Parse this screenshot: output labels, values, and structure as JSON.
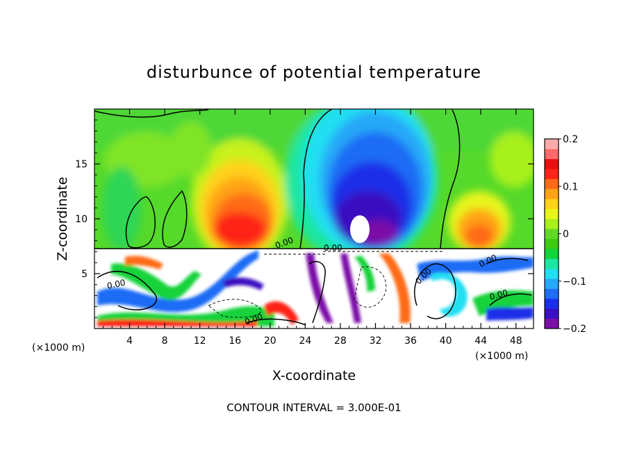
{
  "chart_data": {
    "type": "heatmap",
    "title": "disturbunce of potential temperature",
    "xlabel": "X-coordinate",
    "ylabel": "Z-coordinate",
    "x_unit": "(×1000 m)",
    "z_unit": "(×1000 m)",
    "x_ticks": [
      4,
      8,
      12,
      16,
      20,
      24,
      28,
      32,
      36,
      40,
      44,
      48
    ],
    "z_ticks": [
      5,
      10,
      15
    ],
    "xlim": [
      0,
      50
    ],
    "ylim": [
      0,
      20
    ],
    "contour_interval_label": "CONTOUR INTERVAL = 3.000E-01",
    "contour_labels": [
      "0.00",
      "0.00",
      "0.00",
      "0.00",
      "0.00",
      "0.00",
      "0.00"
    ],
    "colorbar": {
      "range": [
        -0.2,
        0.2
      ],
      "tick_values": [
        0.2,
        0.1,
        0,
        -0.1,
        -0.2
      ],
      "tick_labels": [
        "0.2",
        "0.1",
        "0",
        "−0.1",
        "−0.2"
      ],
      "colors": [
        "#7b0fa8",
        "#3b10c0",
        "#1a2ee8",
        "#1f6cf5",
        "#28a8f8",
        "#22dff2",
        "#1ee6a0",
        "#12d23a",
        "#3ecb12",
        "#62d82a",
        "#a8f01e",
        "#e8f51c",
        "#ffd21a",
        "#ffa418",
        "#ff6a18",
        "#ff2418",
        "#e81010",
        "#ff6a6a",
        "#ffaaaa"
      ]
    },
    "upper_layer_features": [
      {
        "name": "warm anomaly",
        "x_range": [
          12,
          22
        ],
        "z_range": [
          7.5,
          15
        ],
        "value": 0.16
      },
      {
        "name": "cold anomaly",
        "x_range": [
          24,
          40
        ],
        "z_range": [
          7.5,
          20
        ],
        "value": -0.2
      },
      {
        "name": "warm anomaly",
        "x_range": [
          41,
          48
        ],
        "z_range": [
          7.5,
          12
        ],
        "value": 0.1
      },
      {
        "name": "warm anomaly",
        "x_range": [
          36,
          46
        ],
        "z_range": [
          12,
          17
        ],
        "value": 0.05
      }
    ]
  }
}
